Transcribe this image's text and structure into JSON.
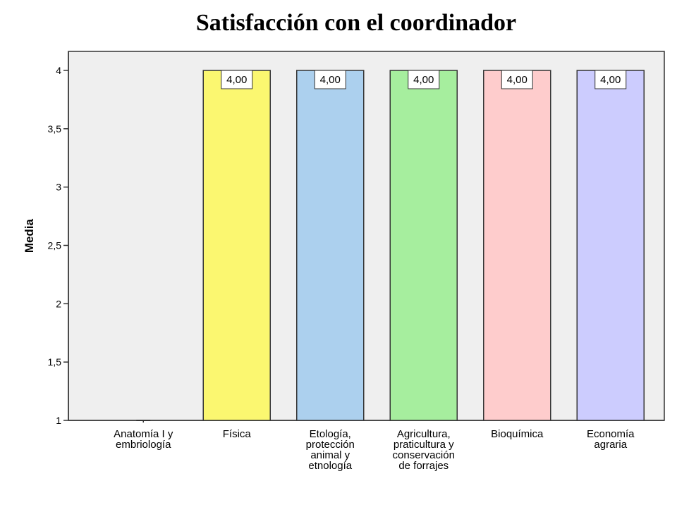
{
  "chart_data": {
    "type": "bar",
    "title": "Satisfacción con el coordinador",
    "ylabel": "Media",
    "xlabel": "",
    "ylim": [
      1,
      4.15
    ],
    "yticks": [
      "1",
      "1,5",
      "2",
      "2,5",
      "3",
      "3,5",
      "4"
    ],
    "ytick_values": [
      1,
      1.5,
      2,
      2.5,
      3,
      3.5,
      4
    ],
    "categories": [
      [
        "Anatomía I y",
        "embriología"
      ],
      [
        "Física"
      ],
      [
        "Etología,",
        "protección",
        "animal y",
        "etnología"
      ],
      [
        "Agricultura,",
        "praticultura y",
        "conservación",
        "de forrajes"
      ],
      [
        "Bioquímica"
      ],
      [
        "Economía",
        "agraria"
      ]
    ],
    "values": [
      1,
      4,
      4,
      4,
      4,
      4
    ],
    "data_labels": [
      "",
      "4,00",
      "4,00",
      "4,00",
      "4,00",
      "4,00"
    ],
    "colors": [
      "#ffff66",
      "#fbf770",
      "#acd0ee",
      "#a6ee9e",
      "#fecccc",
      "#ccccfe"
    ],
    "plot_background": "#efefef",
    "grid": false,
    "legend": "none"
  }
}
